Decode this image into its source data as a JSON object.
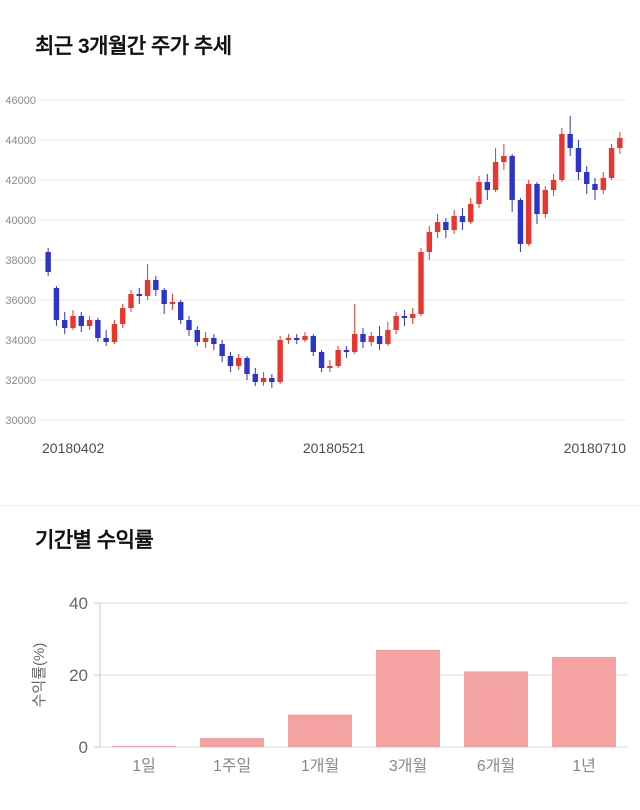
{
  "sections": {
    "price_title": "최근 3개월간 주가 추세",
    "returns_title": "기간별 수익률"
  },
  "chart_data": [
    {
      "type": "candlestick",
      "title": "최근 3개월간 주가 추세",
      "xlabel": "",
      "ylabel": "",
      "ylim": [
        30000,
        46000
      ],
      "yticks": [
        46000,
        44000,
        42000,
        40000,
        38000,
        36000,
        34000,
        32000,
        30000
      ],
      "xticks": [
        "20180402",
        "20180521",
        "20180710"
      ],
      "grid": true,
      "legend": "none",
      "up_color": "#ea362e",
      "down_color": "#2c34cb",
      "grid_color": "#e9e9e9",
      "ytick_color": "#8a8a8a",
      "xtick_color": "#4d4d4d",
      "candle_format": "[open, close, low, high]",
      "candles": [
        [
          38400,
          37400,
          37200,
          38600
        ],
        [
          36600,
          35000,
          34700,
          36700
        ],
        [
          35000,
          34600,
          34300,
          35400
        ],
        [
          34600,
          35200,
          34500,
          35500
        ],
        [
          35200,
          34700,
          34400,
          35400
        ],
        [
          34700,
          35000,
          34500,
          35200
        ],
        [
          35000,
          34100,
          33900,
          35100
        ],
        [
          34100,
          33900,
          33700,
          34500
        ],
        [
          33900,
          34800,
          33800,
          35000
        ],
        [
          34800,
          35600,
          34600,
          35800
        ],
        [
          35600,
          36300,
          35400,
          36500
        ],
        [
          36300,
          36200,
          35800,
          36600
        ],
        [
          36200,
          37000,
          36000,
          37800
        ],
        [
          37000,
          36500,
          36200,
          37200
        ],
        [
          36500,
          35800,
          35300,
          36600
        ],
        [
          35800,
          35900,
          35500,
          36300
        ],
        [
          35900,
          35000,
          34800,
          36000
        ],
        [
          35000,
          34500,
          34200,
          35200
        ],
        [
          34500,
          33900,
          33700,
          34700
        ],
        [
          33900,
          34100,
          33600,
          34400
        ],
        [
          34100,
          33800,
          33500,
          34300
        ],
        [
          33800,
          33200,
          32900,
          34000
        ],
        [
          33200,
          32700,
          32400,
          33400
        ],
        [
          32700,
          33100,
          32500,
          33300
        ],
        [
          33100,
          32300,
          32000,
          33200
        ],
        [
          32300,
          31900,
          31700,
          32600
        ],
        [
          31900,
          32100,
          31700,
          32400
        ],
        [
          32100,
          31900,
          31600,
          32300
        ],
        [
          31900,
          34000,
          31800,
          34200
        ],
        [
          34000,
          34100,
          33800,
          34300
        ],
        [
          34100,
          34000,
          33800,
          34300
        ],
        [
          34000,
          34200,
          33900,
          34400
        ],
        [
          34200,
          33400,
          33200,
          34300
        ],
        [
          33400,
          32600,
          32400,
          33500
        ],
        [
          32600,
          32700,
          32400,
          33000
        ],
        [
          32700,
          33500,
          32600,
          33700
        ],
        [
          33500,
          33400,
          33100,
          33700
        ],
        [
          33400,
          34300,
          33300,
          35800
        ],
        [
          34300,
          33900,
          33600,
          34600
        ],
        [
          33900,
          34200,
          33700,
          34400
        ],
        [
          34200,
          33800,
          33500,
          34700
        ],
        [
          33800,
          34500,
          33700,
          34900
        ],
        [
          34500,
          35200,
          34300,
          35400
        ],
        [
          35200,
          35100,
          34700,
          35500
        ],
        [
          35100,
          35300,
          34800,
          35600
        ],
        [
          35300,
          38400,
          35200,
          38600
        ],
        [
          38400,
          39400,
          38000,
          39700
        ],
        [
          39400,
          39900,
          39100,
          40300
        ],
        [
          39900,
          39500,
          39100,
          40100
        ],
        [
          39500,
          40200,
          39300,
          40500
        ],
        [
          40200,
          39900,
          39500,
          40600
        ],
        [
          39900,
          40800,
          39800,
          41100
        ],
        [
          40800,
          41900,
          40600,
          42200
        ],
        [
          41900,
          41500,
          41000,
          42300
        ],
        [
          41500,
          42900,
          41400,
          43600
        ],
        [
          42900,
          43200,
          42500,
          43800
        ],
        [
          43200,
          41000,
          40400,
          43300
        ],
        [
          41000,
          38800,
          38400,
          41100
        ],
        [
          38800,
          41800,
          38700,
          42000
        ],
        [
          41800,
          40300,
          39800,
          41900
        ],
        [
          40300,
          41500,
          40100,
          41700
        ],
        [
          41500,
          42000,
          41200,
          42300
        ],
        [
          42000,
          44300,
          41900,
          44600
        ],
        [
          44300,
          43600,
          43200,
          45200
        ],
        [
          43600,
          42400,
          42000,
          44000
        ],
        [
          42400,
          41800,
          41300,
          42700
        ],
        [
          41800,
          41500,
          41000,
          42100
        ],
        [
          41500,
          42100,
          41300,
          42400
        ],
        [
          42100,
          43600,
          42000,
          43800
        ],
        [
          43600,
          44100,
          43300,
          44400
        ]
      ]
    },
    {
      "type": "bar",
      "title": "기간별 수익률",
      "xlabel": "",
      "ylabel": "수익률(%)",
      "categories": [
        "1일",
        "1주일",
        "1개월",
        "3개월",
        "6개월",
        "1년"
      ],
      "values": [
        0.3,
        2.5,
        9,
        27,
        21,
        25
      ],
      "ylim": [
        0,
        40
      ],
      "yticks": [
        0,
        20,
        40
      ],
      "grid": true,
      "legend": "none",
      "bar_color": "#f5a2a2",
      "grid_color": "#dedede",
      "axis_color": "#c9c9c9",
      "ytick_color": "#666666",
      "xtick_color": "#888888"
    }
  ]
}
